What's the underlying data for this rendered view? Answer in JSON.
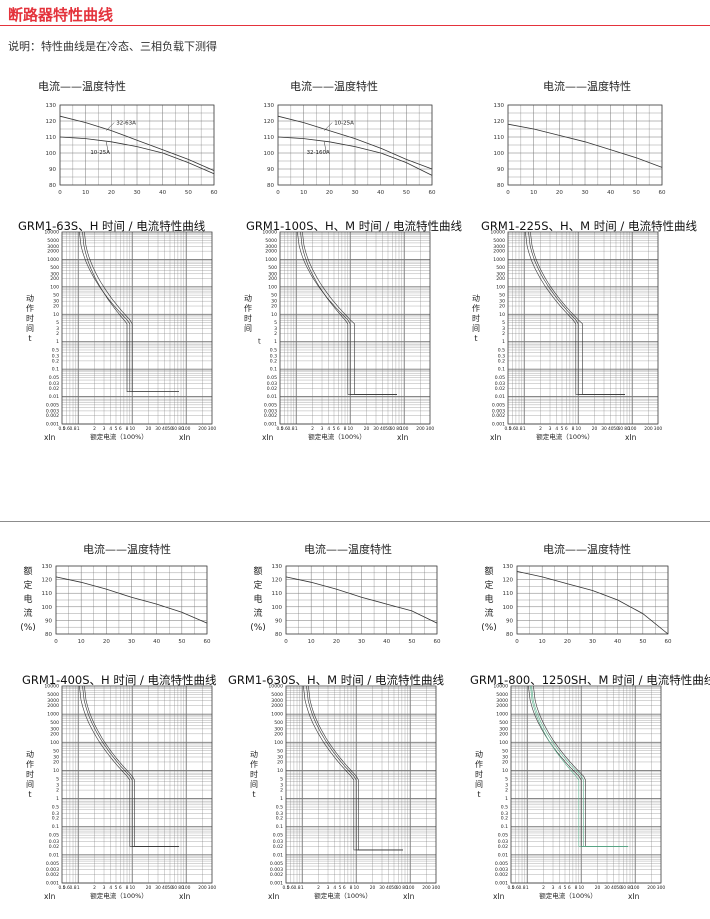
{
  "header": {
    "title": "断路器特性曲线",
    "note": "说明：特性曲线是在冷态、三相负载下测得"
  },
  "colors": {
    "accent": "#e4333c",
    "grid": "#777777",
    "curve": "#333333",
    "green_curve": "#5ab28c"
  },
  "temp_chart": {
    "title": "电流——温度特性",
    "title_alt": "电流——温度特性",
    "x_ticks": [
      "0",
      "10",
      "20",
      "30",
      "40",
      "50",
      "60"
    ],
    "y_ticks": [
      "80",
      "90",
      "100",
      "110",
      "120",
      "130"
    ],
    "ylabel_chars": [
      "额",
      "定",
      "电",
      "流",
      "(%)"
    ]
  },
  "time_chart": {
    "y_ticks": [
      "10000",
      "5000",
      "3000",
      "2000",
      "1000",
      "500",
      "300",
      "200",
      "100",
      "50",
      "30",
      "20",
      "10",
      "5",
      "3",
      "2",
      "1",
      "0.5",
      "0.3",
      "0.2",
      "0.1",
      "0.05",
      "0.03",
      "0.02",
      "0.01",
      "0.005",
      "0.003",
      "0.002",
      "0.001"
    ],
    "x_ticks": [
      "0.5",
      "0.6",
      "0.8",
      "1",
      "2",
      "3",
      "4",
      "5",
      "6",
      "8",
      "10",
      "20",
      "30",
      "40",
      "50",
      "60",
      "80",
      "100",
      "200",
      "300"
    ],
    "ylabel_chars": [
      "动",
      "作",
      "时",
      "间",
      "t"
    ],
    "t_label": "t",
    "xlabel": "额定电流（100%）",
    "xin_left": "xIn",
    "xin_right": "xIn"
  },
  "chart_data": [
    {
      "type": "line",
      "title": "电流——温度特性",
      "xlim": [
        0,
        60
      ],
      "ylim": [
        80,
        130
      ],
      "grid": true,
      "series": [
        {
          "name": "10-25A",
          "x": [
            0,
            10,
            20,
            30,
            40,
            50,
            60
          ],
          "y": [
            110,
            109,
            107,
            104,
            100,
            94,
            87
          ]
        },
        {
          "name": "32-63A",
          "x": [
            0,
            10,
            20,
            30,
            40,
            50,
            60
          ],
          "y": [
            123,
            119,
            114,
            108,
            102,
            96,
            89
          ]
        }
      ]
    },
    {
      "type": "line",
      "title": "电流——温度特性",
      "xlim": [
        0,
        60
      ],
      "ylim": [
        80,
        130
      ],
      "grid": true,
      "series": [
        {
          "name": "10-25A",
          "x": [
            0,
            10,
            20,
            30,
            40,
            50,
            60
          ],
          "y": [
            123,
            119,
            114,
            109,
            103,
            96,
            90
          ]
        },
        {
          "name": "32-160A",
          "x": [
            0,
            10,
            20,
            30,
            40,
            50,
            60
          ],
          "y": [
            110,
            109,
            107,
            104,
            100,
            94,
            86
          ]
        }
      ]
    },
    {
      "type": "line",
      "title": "电流——温度特性",
      "xlim": [
        0,
        60
      ],
      "ylim": [
        80,
        130
      ],
      "grid": true,
      "series": [
        {
          "x": [
            0,
            10,
            20,
            30,
            40,
            50,
            60
          ],
          "y": [
            118,
            115,
            111,
            107,
            102,
            97,
            91
          ]
        }
      ]
    },
    {
      "type": "line",
      "title": "电流——温度特性",
      "xlim": [
        0,
        60
      ],
      "ylim": [
        80,
        130
      ],
      "grid": true,
      "series": [
        {
          "x": [
            0,
            10,
            20,
            30,
            40,
            50,
            60
          ],
          "y": [
            122,
            118,
            113,
            107,
            102,
            96,
            88
          ]
        }
      ]
    },
    {
      "type": "line",
      "title": "电流——温度特性",
      "xlim": [
        0,
        60
      ],
      "ylim": [
        80,
        130
      ],
      "grid": true,
      "series": [
        {
          "x": [
            0,
            10,
            20,
            30,
            40,
            50,
            60
          ],
          "y": [
            122,
            118,
            113,
            107,
            102,
            97,
            88
          ]
        }
      ]
    },
    {
      "type": "line",
      "title": "电流——温度特性",
      "xlim": [
        0,
        60
      ],
      "ylim": [
        80,
        130
      ],
      "grid": true,
      "series": [
        {
          "x": [
            0,
            10,
            20,
            30,
            40,
            50,
            60
          ],
          "y": [
            126,
            122,
            117,
            112,
            105,
            95,
            80
          ]
        }
      ]
    },
    {
      "type": "line",
      "title": "GRM1-63S、H 时间 / 电流特性曲线",
      "scale": "log-log",
      "xlabel": "额定电流（100%）",
      "ylabel": "动作时间 t",
      "xlim": [
        0.5,
        300
      ],
      "ylim": [
        0.001,
        10000
      ],
      "grid": true
    },
    {
      "type": "line",
      "title": "GRM1-100S、H、M 时间 / 电流特性曲线",
      "scale": "log-log",
      "xlabel": "额定电流（100%）",
      "ylabel": "动作时间",
      "xlim": [
        0.5,
        300
      ],
      "ylim": [
        0.001,
        10000
      ],
      "grid": true
    },
    {
      "type": "line",
      "title": "GRM1-225S、H、M 时间 / 电流特性曲线",
      "scale": "log-log",
      "xlabel": "额定电流（100%）",
      "ylabel": "动作时间 t",
      "xlim": [
        0.5,
        300
      ],
      "ylim": [
        0.001,
        10000
      ],
      "grid": true
    },
    {
      "type": "line",
      "title": "GRM1-400S、H 时间 / 电流特性曲线",
      "scale": "log-log",
      "xlabel": "额定电流（100%）",
      "ylabel": "动作时间 t",
      "xlim": [
        0.5,
        300
      ],
      "ylim": [
        0.001,
        10000
      ],
      "grid": true
    },
    {
      "type": "line",
      "title": "GRM1-630S、H、M 时间 / 电流特性曲线",
      "scale": "log-log",
      "xlabel": "额定电流（100%）",
      "ylabel": "动作时间 t",
      "xlim": [
        0.5,
        300
      ],
      "ylim": [
        0.001,
        10000
      ],
      "grid": true
    },
    {
      "type": "line",
      "title": "GRM1-800、1250SH、M 时间 / 电流特性曲线",
      "scale": "log-log",
      "xlabel": "额定电流（100%）",
      "ylabel": "动作时间 t",
      "xlim": [
        0.5,
        300
      ],
      "ylim": [
        0.001,
        10000
      ],
      "grid": true
    }
  ],
  "figures": [
    {
      "curve_title": "GRM1-63S、H 时间 / 电流特性曲线"
    },
    {
      "curve_title": "GRM1-100S、H、M 时间 / 电流特性曲线"
    },
    {
      "curve_title": "GRM1-225S、H、M 时间 / 电流特性曲线"
    },
    {
      "curve_title": "GRM1-400S、H 时间 / 电流特性曲线"
    },
    {
      "curve_title": "GRM1-630S、H、M 时间 / 电流特性曲线"
    },
    {
      "curve_title": "GRM1-800、1250SH、M 时间 / 电流特性曲线"
    }
  ]
}
